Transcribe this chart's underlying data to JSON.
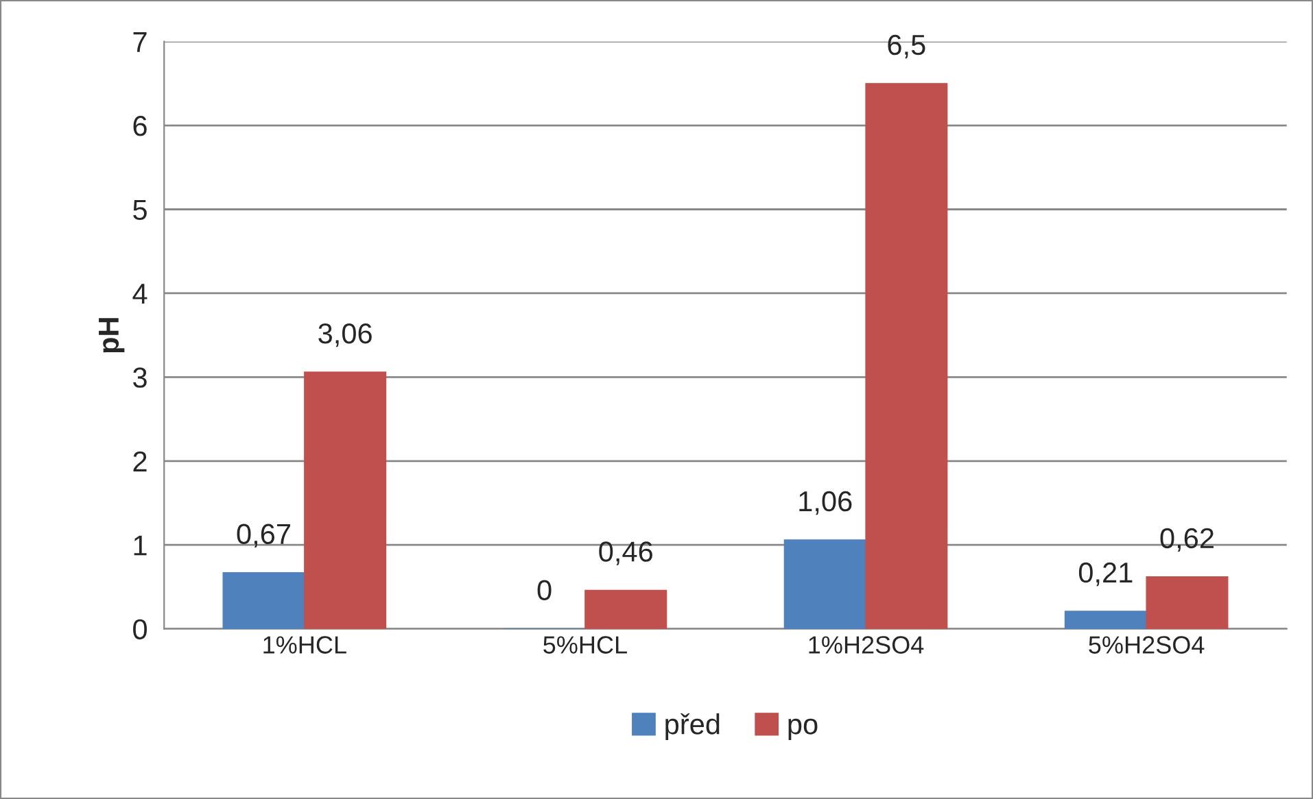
{
  "chart_data": {
    "type": "bar",
    "ylabel": "pH",
    "categories": [
      "1%HCL",
      "5%HCL",
      "1%H2SO4",
      "5%H2SO4"
    ],
    "series": [
      {
        "name": "před",
        "color": "#4f81bd",
        "values": [
          0.67,
          0,
          1.06,
          0.21
        ],
        "value_labels": [
          "0,67",
          "0",
          "1,06",
          "0,21"
        ]
      },
      {
        "name": "po",
        "color": "#c0504d",
        "values": [
          3.06,
          0.46,
          6.5,
          0.62
        ],
        "value_labels": [
          "3,06",
          "0,46",
          "6,5",
          "0,62"
        ]
      }
    ],
    "ylim": [
      0,
      7
    ],
    "yticks": [
      0,
      1,
      2,
      3,
      4,
      5,
      6,
      7
    ],
    "grid": "y",
    "legend": "bottom"
  }
}
